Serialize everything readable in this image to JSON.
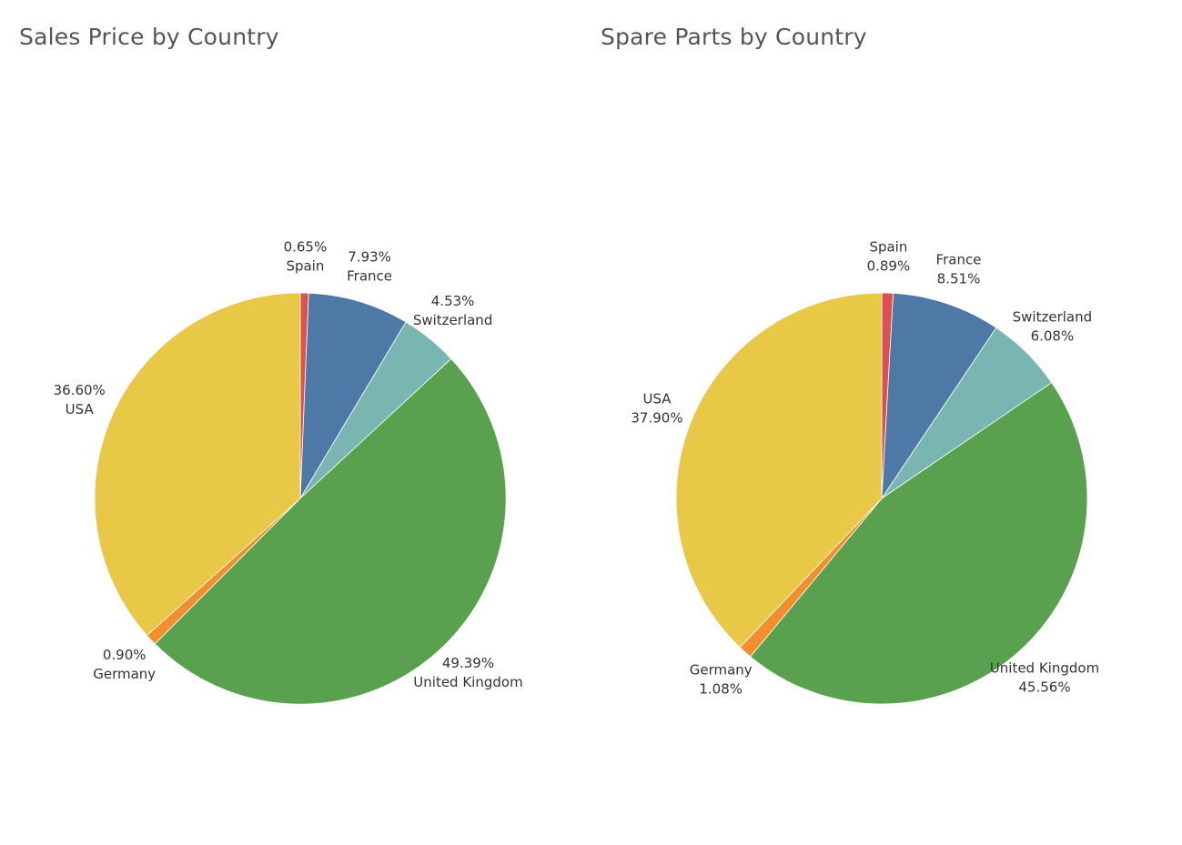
{
  "colors": {
    "Spain": "#DC5150",
    "France": "#4E79A7",
    "Switzerland": "#79B6B1",
    "United Kingdom": "#59A14F",
    "Germany": "#F28E2B",
    "USA": "#E9C848"
  },
  "chart_data": [
    {
      "type": "pie",
      "title": "Sales Price by Country",
      "label_order": "percent-first",
      "slices": [
        {
          "label": "Spain",
          "value": 0.65,
          "display": "0.65%"
        },
        {
          "label": "France",
          "value": 7.93,
          "display": "7.93%"
        },
        {
          "label": "Switzerland",
          "value": 4.53,
          "display": "4.53%"
        },
        {
          "label": "United Kingdom",
          "value": 49.39,
          "display": "49.39%"
        },
        {
          "label": "Germany",
          "value": 0.9,
          "display": "0.90%"
        },
        {
          "label": "USA",
          "value": 36.6,
          "display": "36.60%"
        }
      ]
    },
    {
      "type": "pie",
      "title": "Spare Parts by Country",
      "label_order": "name-first",
      "slices": [
        {
          "label": "Spain",
          "value": 0.89,
          "display": "0.89%"
        },
        {
          "label": "France",
          "value": 8.51,
          "display": "8.51%"
        },
        {
          "label": "Switzerland",
          "value": 6.08,
          "display": "6.08%"
        },
        {
          "label": "United Kingdom",
          "value": 45.56,
          "display": "45.56%"
        },
        {
          "label": "Germany",
          "value": 1.08,
          "display": "1.08%"
        },
        {
          "label": "USA",
          "value": 37.9,
          "display": "37.90%"
        }
      ]
    }
  ]
}
